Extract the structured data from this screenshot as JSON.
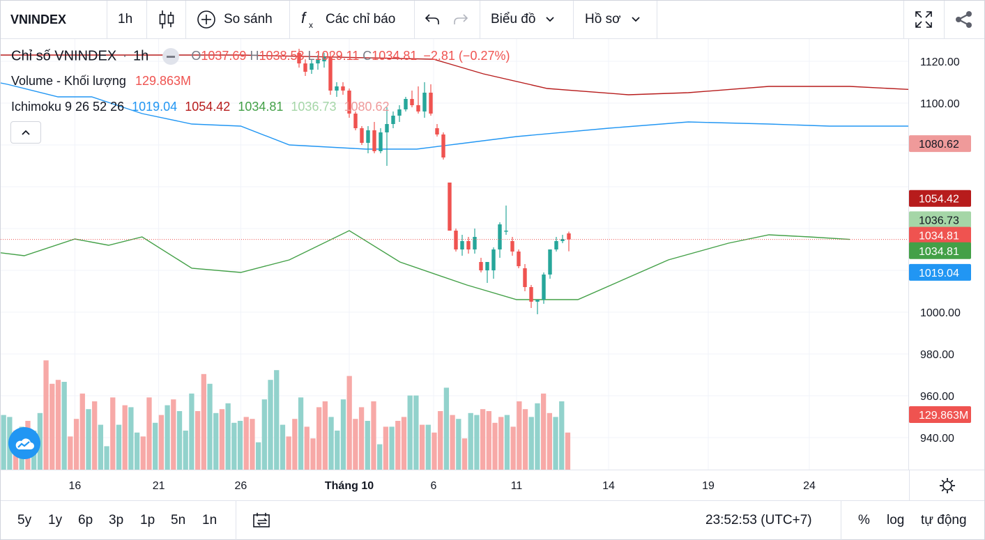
{
  "toolbar": {
    "symbol": "VNINDEX",
    "interval": "1h",
    "compare": "So sánh",
    "indicators": "Các chỉ báo",
    "chart_type_menu": "Biểu đồ",
    "profile_menu": "Hồ sơ"
  },
  "legend": {
    "title": "Chỉ số VNINDEX",
    "interval": "1h",
    "o_label": "O",
    "o": "1037.69",
    "h_label": "H",
    "h": "1038.53",
    "l_label": "L",
    "l": "1029.11",
    "c_label": "C",
    "c": "1034.81",
    "change": "−2.81 (−0.27%)",
    "volume_label": "Volume - Khối lượng",
    "volume_value": "129.863M",
    "ichimoku_label": "Ichimoku 9 26 52 26",
    "ich_tenkan": "1019.04",
    "ich_kijun": "1054.42",
    "ich_chikou": "1034.81",
    "ich_spanA": "1036.73",
    "ich_spanB": "1080.62"
  },
  "colors": {
    "up": "#26a69a",
    "down": "#ef5350",
    "vol_up": "#92d2cc",
    "vol_down": "#f7a9a7",
    "tenkan": "#2196f3",
    "kijun": "#b71c1c",
    "chikou": "#43a047",
    "spanA": "#a5d6a7",
    "spanB": "#ef9a9a",
    "cloud": "#fde0dc"
  },
  "chart_data": {
    "type": "candlestick",
    "symbol": "VNINDEX",
    "interval": "1h",
    "y_ticks": [
      1120,
      1100,
      1080,
      1060,
      1040,
      1020,
      1000,
      980,
      960,
      940
    ],
    "y_tick_labels": [
      "1120.00",
      "1100.00",
      "",
      "",
      "",
      "",
      "1000.00",
      "980.00",
      "960.00",
      "940.00"
    ],
    "x_ticks": [
      {
        "label": "16",
        "bold": false
      },
      {
        "label": "21",
        "bold": false
      },
      {
        "label": "26",
        "bold": false
      },
      {
        "label": "Tháng 10",
        "bold": true
      },
      {
        "label": "6",
        "bold": false
      },
      {
        "label": "11",
        "bold": false
      },
      {
        "label": "14",
        "bold": false
      },
      {
        "label": "19",
        "bold": false
      },
      {
        "label": "24",
        "bold": false
      }
    ],
    "price_labels": [
      {
        "text": "1080.62",
        "value": 1080.62,
        "series": "spanB"
      },
      {
        "text": "1054.42",
        "value": 1054.42,
        "series": "kijun"
      },
      {
        "text": "1036.73",
        "value": 1036.73,
        "series": "spanA"
      },
      {
        "text": "1034.81",
        "value": 1034.81,
        "series": "close"
      },
      {
        "text": "1034.81",
        "value": 1034.81,
        "series": "chikou"
      },
      {
        "text": "1019.04",
        "value": 1019.04,
        "series": "tenkan"
      },
      {
        "text": "129.863M",
        "value": 129.863,
        "series": "volume"
      }
    ],
    "last_close": 1034.81,
    "candles": [
      [
        1124,
        1126,
        1117,
        1119
      ],
      [
        1119,
        1121,
        1113,
        1115
      ],
      [
        1116,
        1121,
        1114,
        1119
      ],
      [
        1119,
        1123,
        1116,
        1121
      ],
      [
        1120,
        1124,
        1117,
        1122
      ],
      [
        1122,
        1124,
        1104,
        1106
      ],
      [
        1106,
        1110,
        1103,
        1108
      ],
      [
        1108,
        1110,
        1104,
        1106
      ],
      [
        1106,
        1107,
        1093,
        1095
      ],
      [
        1095,
        1096,
        1087,
        1088
      ],
      [
        1088,
        1089,
        1080,
        1081
      ],
      [
        1081,
        1089,
        1076,
        1087
      ],
      [
        1087,
        1091,
        1076,
        1077
      ],
      [
        1077,
        1088,
        1076,
        1086
      ],
      [
        1086,
        1098,
        1070,
        1090
      ],
      [
        1090,
        1096,
        1088,
        1094
      ],
      [
        1094,
        1099,
        1091,
        1097
      ],
      [
        1097,
        1103,
        1096,
        1102
      ],
      [
        1102,
        1106,
        1098,
        1099
      ],
      [
        1099,
        1108,
        1095,
        1096
      ],
      [
        1096,
        1110,
        1093,
        1105
      ],
      [
        1105,
        1109,
        1094,
        1095
      ],
      [
        1088,
        1090,
        1084,
        1085
      ],
      [
        1085,
        1086,
        1073,
        1074
      ],
      [
        1062,
        1062,
        1039,
        1039
      ],
      [
        1039,
        1040,
        1029,
        1030
      ],
      [
        1030,
        1037,
        1027,
        1034
      ],
      [
        1034,
        1036,
        1028,
        1030
      ],
      [
        1030,
        1040,
        1028,
        1036
      ],
      [
        1024,
        1026,
        1019,
        1020
      ],
      [
        1020,
        1024,
        1014,
        1024
      ],
      [
        1020,
        1031,
        1016,
        1030
      ],
      [
        1030,
        1043,
        1026,
        1042
      ],
      [
        1039,
        1051,
        1037,
        1039
      ],
      [
        1034,
        1036,
        1027,
        1029
      ],
      [
        1029,
        1030,
        1021,
        1022
      ],
      [
        1021,
        1023,
        1010,
        1012
      ],
      [
        1012,
        1013,
        1002,
        1005
      ],
      [
        1005,
        1006,
        999,
        1006
      ],
      [
        1006,
        1019,
        1004,
        1018
      ],
      [
        1018,
        1030,
        1016,
        1030
      ],
      [
        1030,
        1036,
        1029,
        1034
      ],
      [
        1034,
        1037,
        1033,
        1035
      ],
      [
        1037.69,
        1038.53,
        1029.11,
        1034.81
      ]
    ],
    "volumes": [
      [
        28,
        1
      ],
      [
        27,
        1
      ],
      [
        20,
        0
      ],
      [
        22,
        1
      ],
      [
        25,
        0
      ],
      [
        20,
        1
      ],
      [
        29,
        1
      ],
      [
        56,
        0
      ],
      [
        44,
        0
      ],
      [
        46,
        0
      ],
      [
        45,
        1
      ],
      [
        17,
        0
      ],
      [
        26,
        0
      ],
      [
        39,
        0
      ],
      [
        31,
        1
      ],
      [
        35,
        0
      ],
      [
        23,
        1
      ],
      [
        12,
        1
      ],
      [
        37,
        0
      ],
      [
        23,
        1
      ],
      [
        33,
        0
      ],
      [
        32,
        1
      ],
      [
        19,
        1
      ],
      [
        17,
        0
      ],
      [
        37,
        0
      ],
      [
        24,
        1
      ],
      [
        28,
        0
      ],
      [
        33,
        1
      ],
      [
        36,
        0
      ],
      [
        30,
        1
      ],
      [
        20,
        1
      ],
      [
        39,
        1
      ],
      [
        30,
        0
      ],
      [
        49,
        0
      ],
      [
        44,
        1
      ],
      [
        29,
        1
      ],
      [
        31,
        0
      ],
      [
        34,
        1
      ],
      [
        24,
        1
      ],
      [
        25,
        1
      ],
      [
        27,
        0
      ],
      [
        26,
        0
      ],
      [
        14,
        1
      ],
      [
        36,
        1
      ],
      [
        46,
        1
      ],
      [
        51,
        1
      ],
      [
        23,
        1
      ],
      [
        17,
        0
      ],
      [
        26,
        0
      ],
      [
        37,
        1
      ],
      [
        22,
        0
      ],
      [
        16,
        0
      ],
      [
        32,
        0
      ],
      [
        35,
        0
      ],
      [
        27,
        1
      ],
      [
        20,
        1
      ],
      [
        36,
        1
      ],
      [
        48,
        0
      ],
      [
        26,
        0
      ],
      [
        32,
        0
      ],
      [
        25,
        1
      ],
      [
        35,
        0
      ],
      [
        13,
        1
      ],
      [
        22,
        0
      ],
      [
        22,
        1
      ],
      [
        25,
        0
      ],
      [
        27,
        0
      ],
      [
        38,
        1
      ],
      [
        38,
        1
      ],
      [
        23,
        0
      ],
      [
        23,
        1
      ],
      [
        19,
        0
      ],
      [
        30,
        0
      ],
      [
        42,
        1
      ],
      [
        28,
        0
      ],
      [
        26,
        1
      ],
      [
        16,
        0
      ],
      [
        29,
        1
      ],
      [
        28,
        1
      ],
      [
        31,
        0
      ],
      [
        30,
        0
      ],
      [
        24,
        0
      ],
      [
        27,
        0
      ],
      [
        28,
        1
      ],
      [
        22,
        0
      ],
      [
        35,
        0
      ],
      [
        31,
        0
      ],
      [
        27,
        1
      ],
      [
        34,
        1
      ],
      [
        39,
        0
      ],
      [
        29,
        0
      ],
      [
        27,
        1
      ],
      [
        35,
        1
      ],
      [
        19,
        0
      ]
    ],
    "tenkan": [
      [
        1107,
        1117
      ],
      [
        1112,
        1109
      ],
      [
        1115,
        1103
      ],
      [
        1117,
        1103
      ],
      [
        1120,
        1095
      ],
      [
        1123,
        1090
      ],
      [
        1126,
        1089
      ],
      [
        1129,
        1080
      ],
      [
        1132,
        1078
      ],
      [
        1135,
        1078
      ],
      [
        1138,
        1081
      ],
      [
        1141,
        1084
      ],
      [
        1144,
        1088
      ],
      [
        1148,
        1091
      ],
      [
        1152,
        1090
      ],
      [
        1155,
        1089
      ],
      [
        1158,
        1089
      ],
      [
        1161,
        1089
      ],
      [
        1164,
        1089
      ],
      [
        1167,
        1089
      ],
      [
        1170,
        1089
      ],
      [
        1172,
        1085
      ],
      [
        1176,
        1070
      ],
      [
        1179,
        1058
      ],
      [
        1182,
        1053
      ],
      [
        1185,
        1051
      ],
      [
        1188,
        1046
      ],
      [
        1191,
        1039
      ],
      [
        1194,
        1035
      ],
      [
        1197,
        1033
      ],
      [
        1200,
        1031
      ],
      [
        1203,
        1030
      ],
      [
        1206,
        1028
      ],
      [
        1209,
        1024
      ],
      [
        1212,
        1022
      ],
      [
        1215,
        1021
      ],
      [
        1218,
        1019.04
      ]
    ],
    "kijun": [
      [
        1108,
        1123
      ],
      [
        1118,
        1123
      ],
      [
        1126,
        1123
      ],
      [
        1136,
        1121
      ],
      [
        1139,
        1114
      ],
      [
        1142,
        1107
      ],
      [
        1145,
        1104
      ],
      [
        1148,
        1105
      ],
      [
        1152,
        1108
      ],
      [
        1156,
        1108
      ],
      [
        1160,
        1106
      ],
      [
        1163,
        1104
      ],
      [
        1166,
        1090
      ],
      [
        1170,
        1083
      ],
      [
        1173,
        1078
      ],
      [
        1176,
        1078
      ],
      [
        1179,
        1073
      ],
      [
        1182,
        1068
      ],
      [
        1185,
        1065
      ],
      [
        1188,
        1061
      ],
      [
        1191,
        1061
      ],
      [
        1194,
        1061
      ],
      [
        1197,
        1061
      ],
      [
        1200,
        1057
      ],
      [
        1203,
        1054.42
      ],
      [
        1206,
        1054.42
      ],
      [
        1210,
        1054.42
      ]
    ],
    "chikou": [
      [
        1062,
        1107
      ],
      [
        1066,
        1110
      ],
      [
        1070,
        1101
      ],
      [
        1074,
        1121
      ],
      [
        1076,
        1110
      ],
      [
        1078,
        1103
      ],
      [
        1080,
        1100
      ],
      [
        1082,
        1093
      ],
      [
        1085,
        1086
      ],
      [
        1087,
        1083
      ],
      [
        1090,
        1077
      ],
      [
        1092,
        1083
      ],
      [
        1094,
        1091
      ],
      [
        1096,
        1077
      ],
      [
        1099,
        1083
      ],
      [
        1101,
        1096
      ],
      [
        1104,
        1084
      ],
      [
        1107,
        1070
      ],
      [
        1110,
        1030
      ],
      [
        1113,
        1027
      ],
      [
        1116,
        1035
      ],
      [
        1118,
        1032
      ],
      [
        1120,
        1036
      ],
      [
        1123,
        1021
      ],
      [
        1126,
        1019
      ],
      [
        1129,
        1025
      ],
      [
        1131,
        1039
      ],
      [
        1134,
        1024
      ],
      [
        1138,
        1013
      ],
      [
        1141,
        1006
      ],
      [
        1143,
        1006
      ],
      [
        1147,
        1025
      ],
      [
        1150,
        1033
      ],
      [
        1152,
        1037
      ],
      [
        1154,
        1036
      ],
      [
        1156,
        1034.81
      ]
    ],
    "spanA": [
      [
        1160,
        1141
      ],
      [
        1166,
        1141
      ],
      [
        1170,
        1128
      ],
      [
        1173,
        1120
      ],
      [
        1176,
        1112
      ],
      [
        1179,
        1104
      ],
      [
        1182,
        1102
      ],
      [
        1185,
        1103
      ],
      [
        1188,
        1102
      ],
      [
        1190,
        1102
      ],
      [
        1192,
        1101
      ],
      [
        1193,
        1099
      ],
      [
        1195,
        1085
      ],
      [
        1197,
        1080
      ],
      [
        1200,
        1076
      ],
      [
        1202,
        1072
      ],
      [
        1205,
        1066
      ],
      [
        1208,
        1061
      ],
      [
        1212,
        1053
      ],
      [
        1216,
        1047
      ],
      [
        1220,
        1045
      ],
      [
        1224,
        1045
      ],
      [
        1228,
        1041
      ],
      [
        1232,
        1038
      ],
      [
        1236,
        1038
      ],
      [
        1240,
        1038
      ],
      [
        1243,
        1036.73
      ],
      [
        1246,
        1036.73
      ]
    ],
    "spanB": [
      [
        1160,
        1141
      ],
      [
        1168,
        1138
      ],
      [
        1178,
        1138
      ],
      [
        1182,
        1128
      ],
      [
        1186,
        1123
      ],
      [
        1189,
        1114
      ],
      [
        1192,
        1108
      ],
      [
        1195,
        1104
      ],
      [
        1198,
        1100
      ],
      [
        1201,
        1096
      ],
      [
        1204,
        1094
      ],
      [
        1207,
        1091
      ],
      [
        1210,
        1088
      ],
      [
        1213,
        1081
      ],
      [
        1217,
        1080.62
      ],
      [
        1221,
        1080.62
      ],
      [
        1224,
        1080.62
      ]
    ]
  },
  "bottombar": {
    "ranges": [
      "5y",
      "1y",
      "6p",
      "3p",
      "1p",
      "5n",
      "1n"
    ],
    "clock": "23:52:53 (UTC+7)",
    "percent": "%",
    "log": "log",
    "auto": "tự động"
  }
}
